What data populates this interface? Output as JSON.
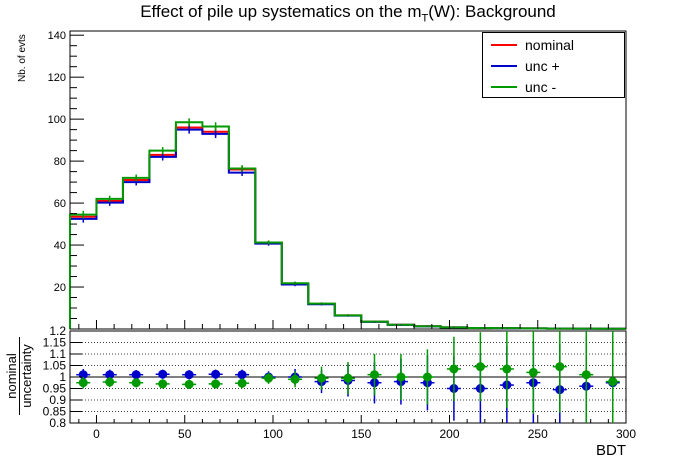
{
  "title_prefix": "Effect of pile up systematics on the m",
  "title_sub": "T",
  "title_suffix": "(W): Background",
  "legend": [
    {
      "label": "nominal",
      "color": "#ff0000"
    },
    {
      "label": "unc +",
      "color": "#0000cc"
    },
    {
      "label": "unc -",
      "color": "#009900"
    }
  ],
  "chart_data": [
    {
      "type": "line",
      "title": "Effect of pile up systematics on the m_T(W): Background",
      "ylabel": "Nb. of evts",
      "xlim": [
        -15,
        300
      ],
      "ylim": [
        0,
        142
      ],
      "yticks": [
        20,
        40,
        60,
        80,
        100,
        120,
        140
      ],
      "bin_edges": [
        -15,
        0,
        15,
        30,
        45,
        60,
        75,
        90,
        105,
        120,
        135,
        150,
        165,
        180,
        195,
        210,
        225,
        240,
        255,
        270,
        285,
        300
      ],
      "bin_centers": [
        -7.5,
        7.5,
        22.5,
        37.5,
        52.5,
        67.5,
        82.5,
        97.5,
        112.5,
        127.5,
        142.5,
        157.5,
        172.5,
        187.5,
        202.5,
        217.5,
        232.5,
        247.5,
        262.5,
        277.5,
        292.5
      ],
      "series": [
        {
          "name": "nominal",
          "color": "#ff0000",
          "values": [
            53.5,
            61,
            71,
            83,
            96,
            94,
            76,
            41,
            21.5,
            12,
            6.5,
            3.5,
            2,
            1.3,
            0.8,
            0.5,
            0.4,
            0.3,
            0.2,
            0.15,
            0.1
          ]
        },
        {
          "name": "unc +",
          "color": "#0000cc",
          "values": [
            52.5,
            60.2,
            70,
            82,
            95,
            93,
            74.5,
            40.7,
            21.2,
            11.8,
            6.4,
            3.4,
            1.95,
            1.27,
            0.77,
            0.48,
            0.38,
            0.29,
            0.19,
            0.145,
            0.1
          ]
        },
        {
          "name": "unc -",
          "color": "#009900",
          "values": [
            54.5,
            62,
            72,
            85,
            98.5,
            96.5,
            76.5,
            41.2,
            21.8,
            12.1,
            6.5,
            3.5,
            2,
            1.3,
            0.8,
            0.5,
            0.4,
            0.3,
            0.2,
            0.15,
            0.1
          ]
        }
      ],
      "errors": [
        1.8,
        1.5,
        1.6,
        1.7,
        1.9,
        2,
        1.6,
        1,
        0.8,
        0.6,
        0.5,
        0.4,
        0.3,
        0.25,
        0.2,
        0.18,
        0.15,
        0.12,
        0.1,
        0.1,
        0.08
      ]
    },
    {
      "type": "scatter",
      "ylabel_num": "nominal",
      "ylabel_den": "uncertainty",
      "xlabel": "BDT",
      "xlim": [
        -15,
        300
      ],
      "ylim": [
        0.8,
        1.2
      ],
      "xticks": [
        0,
        50,
        100,
        150,
        200,
        250,
        300
      ],
      "yticks": [
        "0.8",
        "0.85",
        "0.9",
        "0.95",
        "1",
        "1.05",
        "1.1",
        "1.15",
        "1.2"
      ],
      "x": [
        -7.5,
        7.5,
        22.5,
        37.5,
        52.5,
        67.5,
        82.5,
        97.5,
        112.5,
        127.5,
        142.5,
        157.5,
        172.5,
        187.5,
        202.5,
        217.5,
        232.5,
        247.5,
        262.5,
        277.5,
        292.5
      ],
      "series": [
        {
          "name": "unc +",
          "color": "#0000cc",
          "values": [
            1.01,
            1.01,
            1.01,
            1.012,
            1.01,
            1.012,
            1.01,
            1.0,
            1.0,
            0.98,
            0.985,
            0.975,
            0.98,
            0.975,
            0.95,
            0.95,
            0.965,
            0.975,
            0.945,
            0.96,
            0.975
          ],
          "errors": [
            0.025,
            0.022,
            0.02,
            0.02,
            0.02,
            0.02,
            0.022,
            0.025,
            0.035,
            0.05,
            0.07,
            0.09,
            0.1,
            0.12,
            0.14,
            0.15,
            0.17,
            0.18,
            0.2,
            0.22,
            0.24
          ]
        },
        {
          "name": "unc -",
          "color": "#009900",
          "values": [
            0.975,
            0.978,
            0.975,
            0.97,
            0.968,
            0.97,
            0.973,
            0.995,
            0.99,
            0.995,
            0.995,
            1.01,
            1.0,
            1.0,
            1.035,
            1.045,
            1.035,
            1.02,
            1.045,
            1.01,
            0.98
          ],
          "errors": [
            0.025,
            0.022,
            0.02,
            0.02,
            0.02,
            0.02,
            0.022,
            0.025,
            0.035,
            0.05,
            0.07,
            0.09,
            0.1,
            0.12,
            0.14,
            0.15,
            0.17,
            0.18,
            0.2,
            0.22,
            0.24
          ]
        }
      ]
    }
  ]
}
